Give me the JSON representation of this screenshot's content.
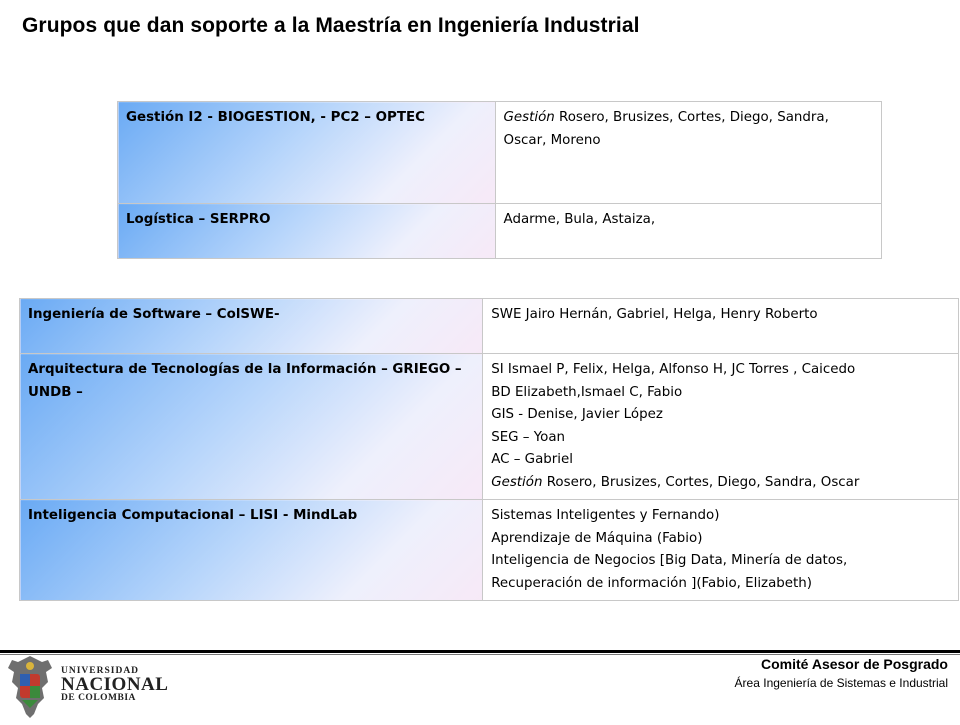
{
  "page": {
    "title": "Grupos que dan soporte a la Maestría en Ingeniería Industrial"
  },
  "table1": {
    "rows": [
      {
        "group": "Gestión I2 - BIOGESTION,  - PC2 – OPTEC",
        "members": [
          {
            "em": "Gestión ",
            "text": " Rosero, Brusizes,  Cortes, Diego, Sandra, Oscar, Moreno"
          }
        ]
      },
      {
        "group": "Logística – SERPRO",
        "members": [
          {
            "em": "",
            "text": "Adarme, Bula, Astaiza,"
          }
        ]
      }
    ]
  },
  "table2": {
    "rows": [
      {
        "group": "Ingeniería de Software – ColSWE-",
        "members": [
          {
            "em": "",
            "text": "SWE  Jairo Hernán, Gabriel, Helga, Henry Roberto"
          }
        ]
      },
      {
        "group": "Arquitectura de Tecnologías de la Información – GRIEGO – UNDB –",
        "members": [
          {
            "em": "",
            "text": "SI Ismael P, Felix, Helga, Alfonso H, JC Torres , Caicedo"
          },
          {
            "em": "",
            "text": "BD Elizabeth,Ismael C, Fabio"
          },
          {
            "em": "",
            "text": "GIS - Denise, Javier López"
          },
          {
            "em": "",
            "text": "SEG – Yoan"
          },
          {
            "em": "",
            "text": "AC – Gabriel"
          },
          {
            "em": "Gestión ",
            "text": " Rosero, Brusizes,  Cortes, Diego, Sandra, Oscar"
          }
        ]
      },
      {
        "group": "Inteligencia Computacional  – LISI -  MindLab",
        "members": [
          {
            "em": "",
            "text": "Sistemas Inteligentes  y Fernando)"
          },
          {
            "em": "",
            "text": "Aprendizaje de Máquina (Fabio)"
          },
          {
            "em": "",
            "text": "Inteligencia de Negocios [Big Data, Minería de datos,"
          },
          {
            "em": "",
            "text": "Recuperación de información ](Fabio, Elizabeth)"
          }
        ]
      }
    ]
  },
  "footer": {
    "committee": "Comité Asesor de Posgrado",
    "area": "Área Ingeniería  de Sistemas e Industrial",
    "logo": {
      "line1": "UNIVERSIDAD",
      "line2": "NACIONAL",
      "line3": "DE COLOMBIA",
      "icon": "coat-of-arms-icon"
    }
  },
  "colors": {
    "group_cell_gradient": [
      "#6aaaf4",
      "#b8d6fb",
      "#eef0fc",
      "#f7e9f7"
    ],
    "border": "#c8c8c8"
  }
}
